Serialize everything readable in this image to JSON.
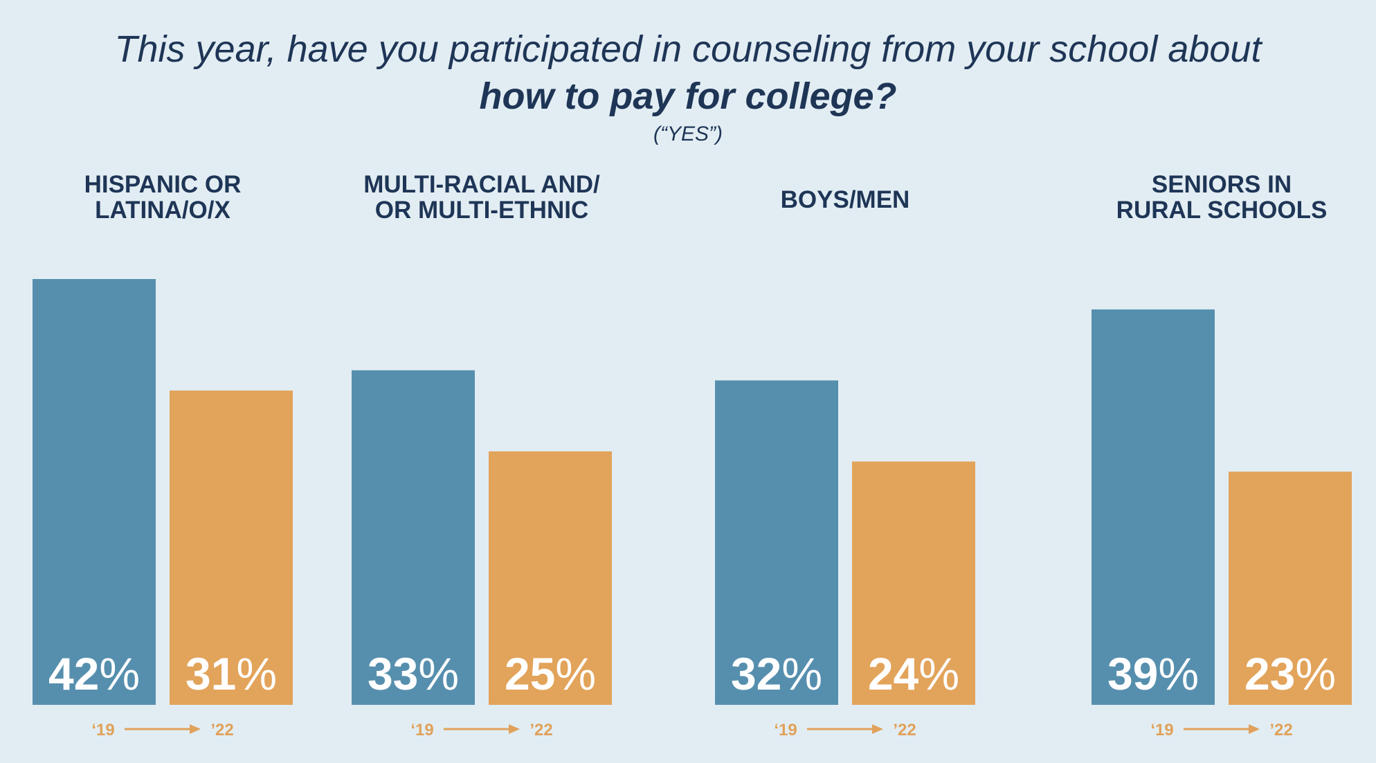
{
  "colors": {
    "background": "#e2edf3",
    "bar_2019": "#568fae",
    "bar_2022": "#e2a35a",
    "text": "#1e3556",
    "year_label": "#e0a15a"
  },
  "chart_data": {
    "type": "bar",
    "title": "This year, have you participated in counseling from your school about",
    "title_emphasis": "how to pay for college?",
    "subtitle": "(“YES”)",
    "categories": [
      [
        "HISPANIC OR",
        "LATINA/O/X"
      ],
      [
        "MULTI-RACIAL AND/",
        "OR MULTI-ETHNIC"
      ],
      [
        "BOYS/MEN"
      ],
      [
        "SENIORS IN",
        "RURAL SCHOOLS"
      ]
    ],
    "series": [
      {
        "name": "‘19",
        "values": [
          42,
          33,
          32,
          39
        ]
      },
      {
        "name": "’22",
        "values": [
          31,
          25,
          24,
          23
        ]
      }
    ],
    "value_suffix": "%",
    "year_labels": [
      "‘19",
      "’22"
    ],
    "ylim": [
      0,
      50
    ]
  }
}
